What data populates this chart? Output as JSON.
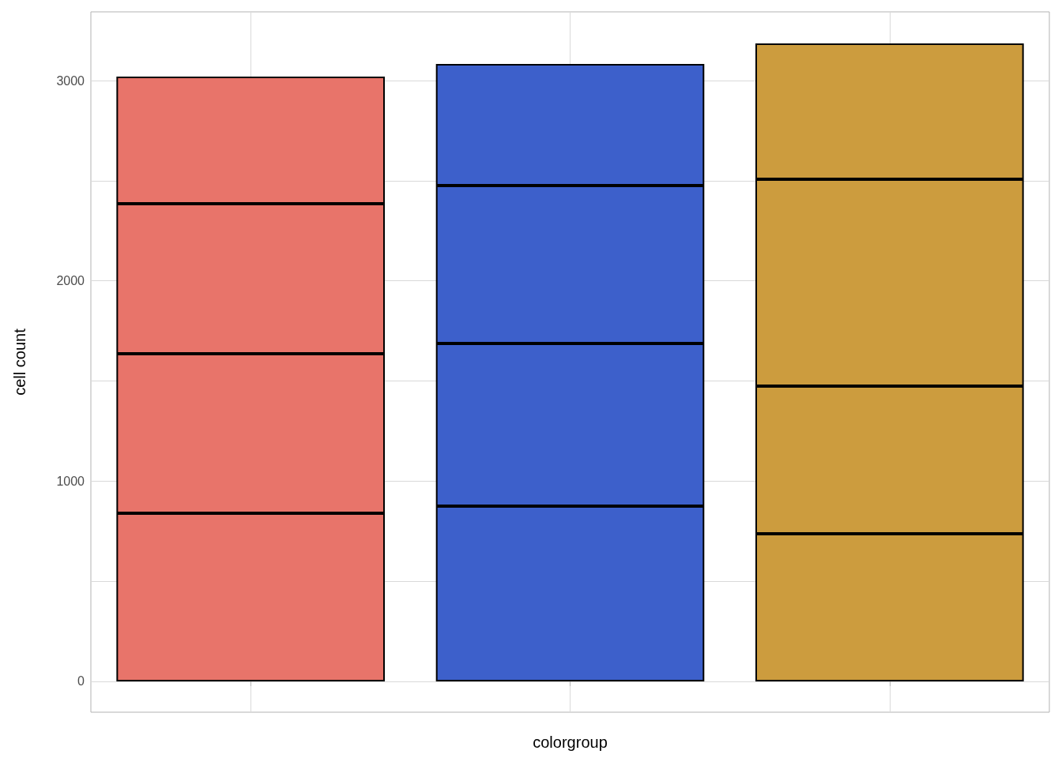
{
  "chart_data": {
    "type": "bar",
    "stacked": true,
    "xlabel": "colorgroup",
    "ylabel": "cell count",
    "categories": [
      null,
      null,
      null
    ],
    "series": [
      {
        "colors": [
          "#e8746a",
          "#3d60cb",
          "#cc9c3e"
        ],
        "values": [
          840,
          875,
          737
        ]
      },
      {
        "colors": [
          "#e8746a",
          "#3d60cb",
          "#cc9c3e"
        ],
        "values": [
          796,
          812,
          737
        ]
      },
      {
        "colors": [
          "#e8746a",
          "#3d60cb",
          "#cc9c3e"
        ],
        "values": [
          749,
          789,
          1033
        ]
      },
      {
        "colors": [
          "#e8746a",
          "#3d60cb",
          "#cc9c3e"
        ],
        "values": [
          635,
          607,
          678
        ]
      }
    ],
    "ylim": [
      -154,
      3343
    ],
    "yticks": [
      0,
      {
        "value": 500,
        "label": null
      },
      1000,
      {
        "value": 1500,
        "label": null
      },
      2000,
      {
        "value": 2500,
        "label": null
      },
      3000
    ],
    "grid": true,
    "tick_labels": "y"
  }
}
